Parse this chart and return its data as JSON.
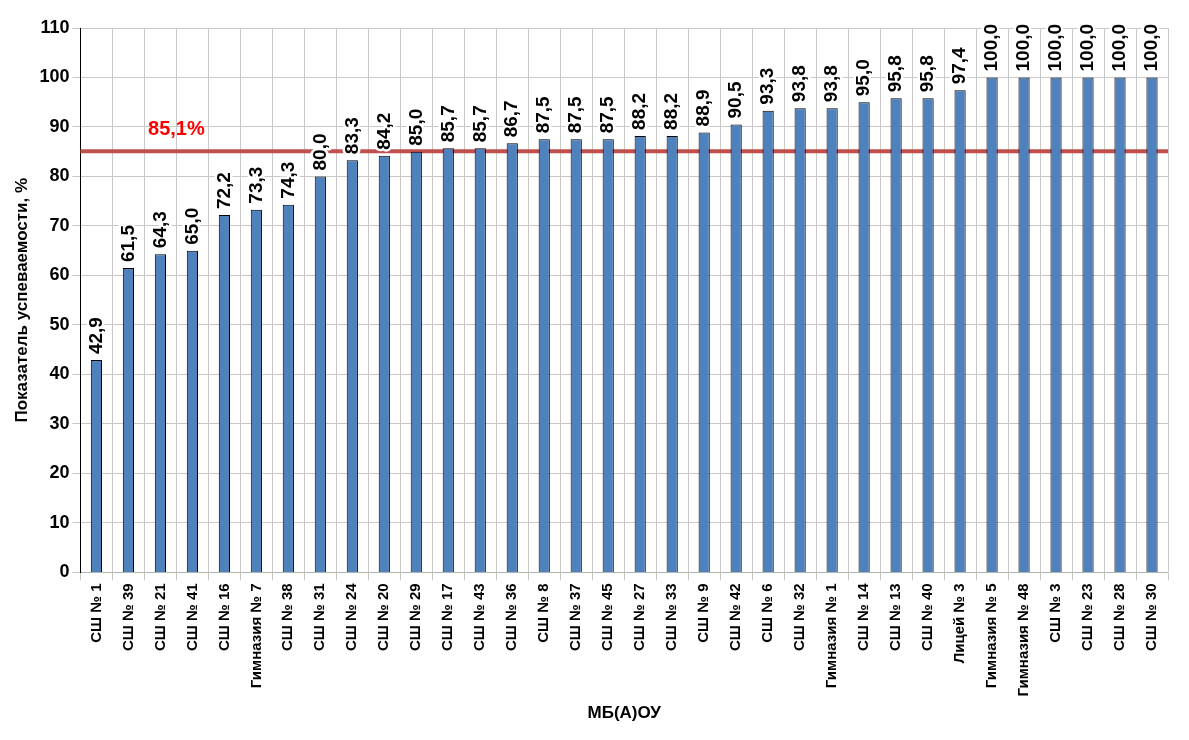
{
  "chart_data": {
    "type": "bar",
    "xlabel": "МБ(А)ОУ",
    "ylabel": "Показатель успеваемости, %",
    "categories": [
      "СШ № 1",
      "СШ № 39",
      "СШ № 21",
      "СШ № 41",
      "СШ № 16",
      "Гимназия № 7",
      "СШ № 38",
      "СШ № 31",
      "СШ № 24",
      "СШ № 20",
      "СШ № 29",
      "СШ № 17",
      "СШ № 43",
      "СШ № 36",
      "СШ № 8",
      "СШ № 37",
      "СШ № 45",
      "СШ № 27",
      "СШ № 33",
      "СШ № 9",
      "СШ № 42",
      "СШ № 6",
      "СШ № 32",
      "Гимназия № 1",
      "СШ № 14",
      "СШ № 13",
      "СШ № 40",
      "Лицей № 3",
      "Гимназия № 5",
      "Гимназия № 48",
      "СШ № 3",
      "СШ № 23",
      "СШ № 28",
      "СШ № 30"
    ],
    "values": [
      42.9,
      61.5,
      64.3,
      65.0,
      72.2,
      73.3,
      74.3,
      80.0,
      83.3,
      84.2,
      85.0,
      85.7,
      85.7,
      86.7,
      87.5,
      87.5,
      87.5,
      88.2,
      88.2,
      88.9,
      90.5,
      93.3,
      93.8,
      93.8,
      95.0,
      95.8,
      95.8,
      97.4,
      100,
      100,
      100,
      100,
      100,
      100
    ],
    "value_labels": [
      "42,9",
      "61,5",
      "64,3",
      "65,0",
      "72,2",
      "73,3",
      "74,3",
      "80,0",
      "83,3",
      "84,2",
      "85,0",
      "85,7",
      "85,7",
      "86,7",
      "87,5",
      "87,5",
      "87,5",
      "88,2",
      "88,2",
      "88,9",
      "90,5",
      "93,3",
      "93,8",
      "93,8",
      "95,0",
      "95,8",
      "95,8",
      "97,4",
      "100,0",
      "100,0",
      "100,0",
      "100,0",
      "100,0",
      "100,0"
    ],
    "color": "#4f81bd",
    "ylim": [
      0,
      110
    ],
    "yticks": [
      0,
      10,
      20,
      30,
      40,
      50,
      60,
      70,
      80,
      90,
      100,
      110
    ],
    "grid": true,
    "legend": false,
    "ref_lines": [
      {
        "axis": "y",
        "value": 85.1,
        "label": "85,1%",
        "color": "#c0504d"
      }
    ]
  }
}
